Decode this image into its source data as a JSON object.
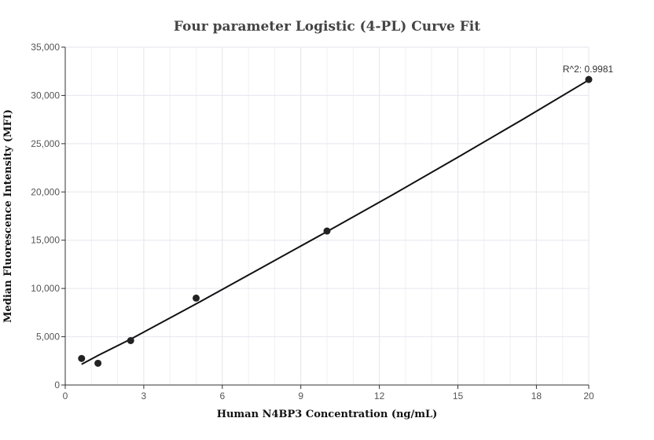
{
  "chart_data": {
    "type": "scatter",
    "title": "Four parameter Logistic (4-PL) Curve Fit",
    "xlabel": "Human N4BP3 Concentration (ng/mL)",
    "ylabel": "Median Fluorescence Intensity (MFI)",
    "xlim": [
      0,
      20
    ],
    "ylim": [
      0,
      35000
    ],
    "x_ticks": [
      0,
      3,
      6,
      9,
      12,
      15,
      18,
      20
    ],
    "x_tick_labels": [
      "0",
      "3",
      "6",
      "9",
      "12",
      "15",
      "18",
      "20"
    ],
    "y_ticks": [
      0,
      5000,
      10000,
      15000,
      20000,
      25000,
      30000,
      35000
    ],
    "y_tick_labels": [
      "0",
      "5,000",
      "10,000",
      "15,000",
      "20,000",
      "25,000",
      "30,000",
      "35,000"
    ],
    "grid": true,
    "series": [
      {
        "type": "scatter",
        "x": [
          0.625,
          1.25,
          2.5,
          5,
          10,
          20
        ],
        "y": [
          2750,
          2250,
          4600,
          9000,
          15950,
          31650
        ]
      },
      {
        "type": "line",
        "x": [
          0.625,
          1.25,
          2.5,
          5,
          7.5,
          10,
          12.5,
          15,
          17.5,
          20
        ],
        "y": [
          2150,
          3050,
          4750,
          8400,
          12150,
          15900,
          19700,
          23600,
          27550,
          31600
        ]
      }
    ],
    "annotation": {
      "text": "R^2: 0.9981",
      "x": 20,
      "y": 31650
    },
    "colors": {
      "points": "#222222",
      "line": "#111111",
      "grid": "#e6e6ee",
      "axis": "#333333"
    }
  }
}
